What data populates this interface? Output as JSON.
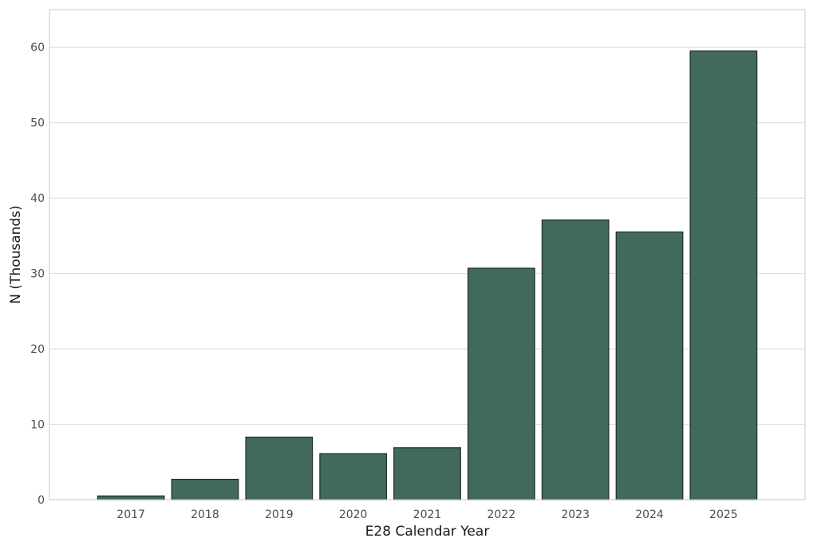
{
  "chart_data": {
    "type": "bar",
    "categories": [
      "2017",
      "2018",
      "2019",
      "2020",
      "2021",
      "2022",
      "2023",
      "2024",
      "2025"
    ],
    "values": [
      0.5,
      2.7,
      8.3,
      6.1,
      6.9,
      30.7,
      37.1,
      35.5,
      59.5
    ],
    "title": "",
    "xlabel": "E28 Calendar Year",
    "ylabel": "N (Thousands)",
    "ylim": [
      0,
      65
    ],
    "yticks": [
      "0",
      "10",
      "20",
      "30",
      "40",
      "50",
      "60"
    ],
    "grid": "horizontal",
    "colors": {
      "bar_fill": "#41695c",
      "bar_stroke": "#1f2e29",
      "grid": "#dcdcdc",
      "panel_border": "#c8c8c8"
    }
  }
}
